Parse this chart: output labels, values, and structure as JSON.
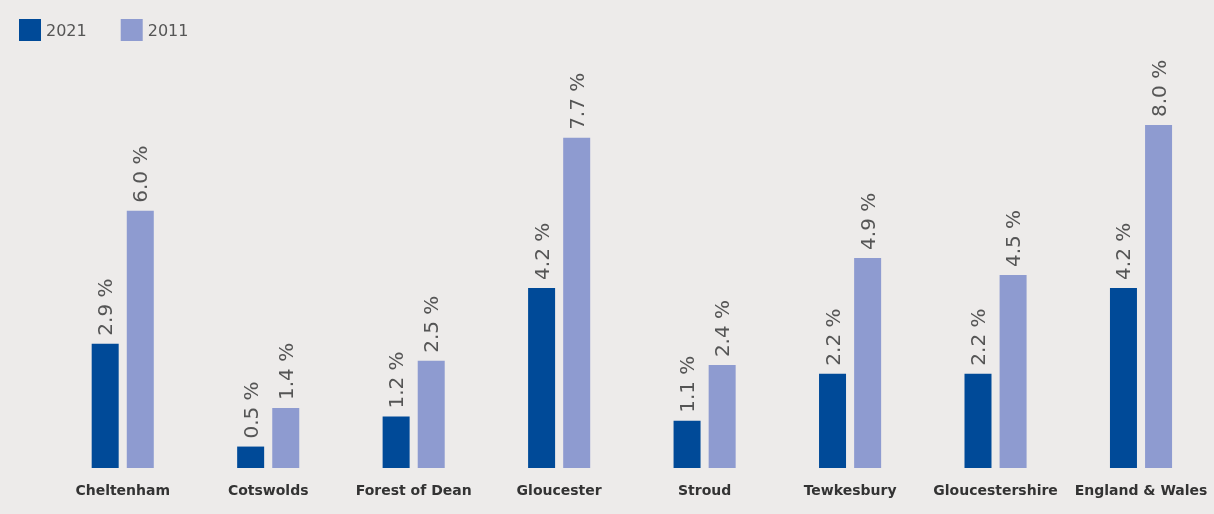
{
  "chart_data": {
    "type": "bar",
    "categories": [
      "Cheltenham",
      "Cotswolds",
      "Forest of Dean",
      "Gloucester",
      "Stroud",
      "Tewkesbury",
      "Gloucestershire",
      "England & Wales"
    ],
    "series": [
      {
        "name": "2021",
        "color": "#004a98",
        "values": [
          2.9,
          0.5,
          1.2,
          4.2,
          1.1,
          2.2,
          2.2,
          4.2
        ],
        "value_labels": [
          "2.9 %",
          "0.5 %",
          "1.2 %",
          "4.2 %",
          "1.1 %",
          "2.2 %",
          "2.2 %",
          "4.2 %"
        ]
      },
      {
        "name": "2011",
        "color": "#8e9bd0",
        "values": [
          6.0,
          1.4,
          2.5,
          7.7,
          2.4,
          4.9,
          4.5,
          8.0
        ],
        "value_labels": [
          "6.0 %",
          "1.4 %",
          "2.5 %",
          "7.7 %",
          "2.4 %",
          "4.9 %",
          "4.5 %",
          "8.0 %"
        ]
      }
    ],
    "legend": "top left",
    "grid": false
  }
}
